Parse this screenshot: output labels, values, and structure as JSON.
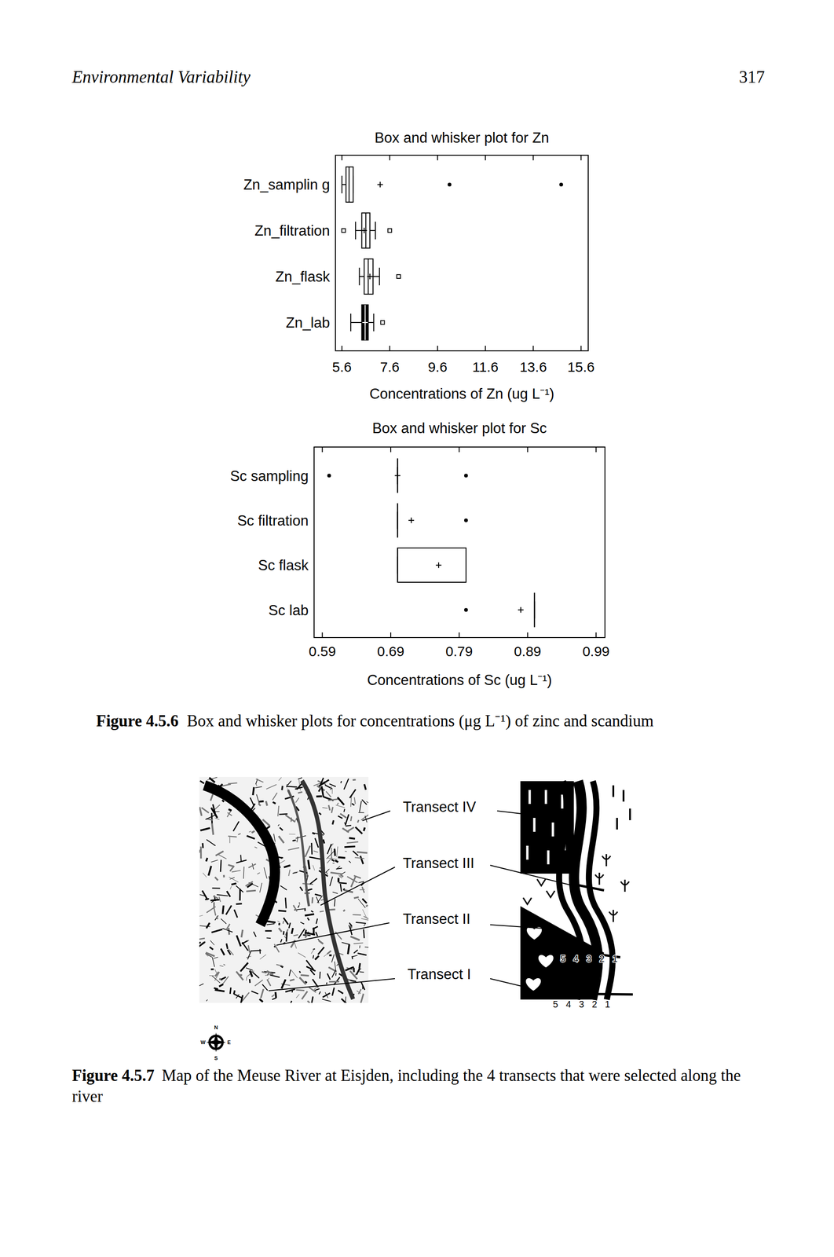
{
  "header": {
    "running_title": "Environmental Variability",
    "page_number": "317"
  },
  "chart_data": [
    {
      "type": "box",
      "orientation": "horizontal",
      "title": "Box and whisker plot for Zn",
      "x_label": "Concentrations of Zn (ug L⁻¹)",
      "categories": [
        "Zn_samplin g",
        "Zn_filtration",
        "Zn_flask",
        "Zn_lab"
      ],
      "xlim": [
        5.33,
        15.9
      ],
      "xticks": [
        5.6,
        7.6,
        9.6,
        11.6,
        13.6,
        15.6
      ],
      "boxes": [
        {
          "whisker_low": 5.6,
          "q1": 5.77,
          "median": 5.9,
          "q3": 6.07,
          "whisker_high": 6.07,
          "mean": 7.2,
          "outliers": [
            10.1,
            14.77
          ],
          "marker": "dot",
          "color": "#ffffff"
        },
        {
          "whisker_low": 6.17,
          "q1": 6.43,
          "median": 6.6,
          "q3": 6.77,
          "whisker_high": 7.0,
          "mean": 6.53,
          "outliers": [
            5.67,
            7.6
          ],
          "marker": "square",
          "color": "#ffffff"
        },
        {
          "whisker_low": 6.33,
          "q1": 6.53,
          "median": 6.7,
          "q3": 6.9,
          "whisker_high": 7.17,
          "mean": 6.77,
          "outliers": [
            7.97
          ],
          "marker": "square",
          "color": "#ffffff"
        },
        {
          "whisker_low": 5.97,
          "q1": 6.43,
          "median": 6.57,
          "q3": 6.7,
          "whisker_high": 6.93,
          "mean": 6.57,
          "outliers": [
            7.3
          ],
          "marker": "square",
          "color": "#000000"
        }
      ]
    },
    {
      "type": "box",
      "orientation": "horizontal",
      "title": "Box and whisker plot for Sc",
      "x_label": "Concentrations of Sc (ug L⁻¹)",
      "categories": [
        "Sc sampling",
        "Sc filtration",
        "Sc flask",
        "Sc lab"
      ],
      "xlim": [
        0.578,
        1.003
      ],
      "xticks": [
        0.59,
        0.69,
        0.79,
        0.89,
        0.99
      ],
      "boxes": [
        {
          "whisker_low": 0.7,
          "q1": 0.7,
          "median": 0.7,
          "q3": 0.7,
          "whisker_high": 0.7,
          "mean": 0.7,
          "outliers": [
            0.6,
            0.8
          ],
          "marker": "dot",
          "color": "#ffffff"
        },
        {
          "whisker_low": 0.7,
          "q1": 0.7,
          "median": 0.7,
          "q3": 0.7,
          "whisker_high": 0.7,
          "mean": 0.72,
          "outliers": [
            0.8
          ],
          "marker": "dot",
          "color": "#ffffff"
        },
        {
          "whisker_low": 0.7,
          "q1": 0.7,
          "median": 0.7,
          "q3": 0.8,
          "whisker_high": 0.8,
          "mean": 0.76,
          "outliers": [],
          "marker": "dot",
          "color": "#ffffff"
        },
        {
          "whisker_low": 0.9,
          "q1": 0.9,
          "median": 0.9,
          "q3": 0.9,
          "whisker_high": 0.9,
          "mean": 0.88,
          "outliers": [
            0.8
          ],
          "marker": "dot",
          "color": "#ffffff"
        }
      ]
    }
  ],
  "captions": [
    {
      "label": "Figure 4.5.6",
      "text": "Box and whisker plots for concentrations (μg L⁻¹) of zinc and scandium"
    },
    {
      "label": "Figure 4.5.7",
      "text": "Map of the Meuse River at Eisjden, including the 4 transects that were selected along the river"
    }
  ],
  "map": {
    "transects": [
      "Transect IV",
      "Transect III",
      "Transect II",
      "Transect I"
    ],
    "point_labels": [
      "5",
      "4",
      "3",
      "2",
      "1"
    ],
    "compass": [
      "N",
      "W",
      "E",
      "S"
    ]
  }
}
